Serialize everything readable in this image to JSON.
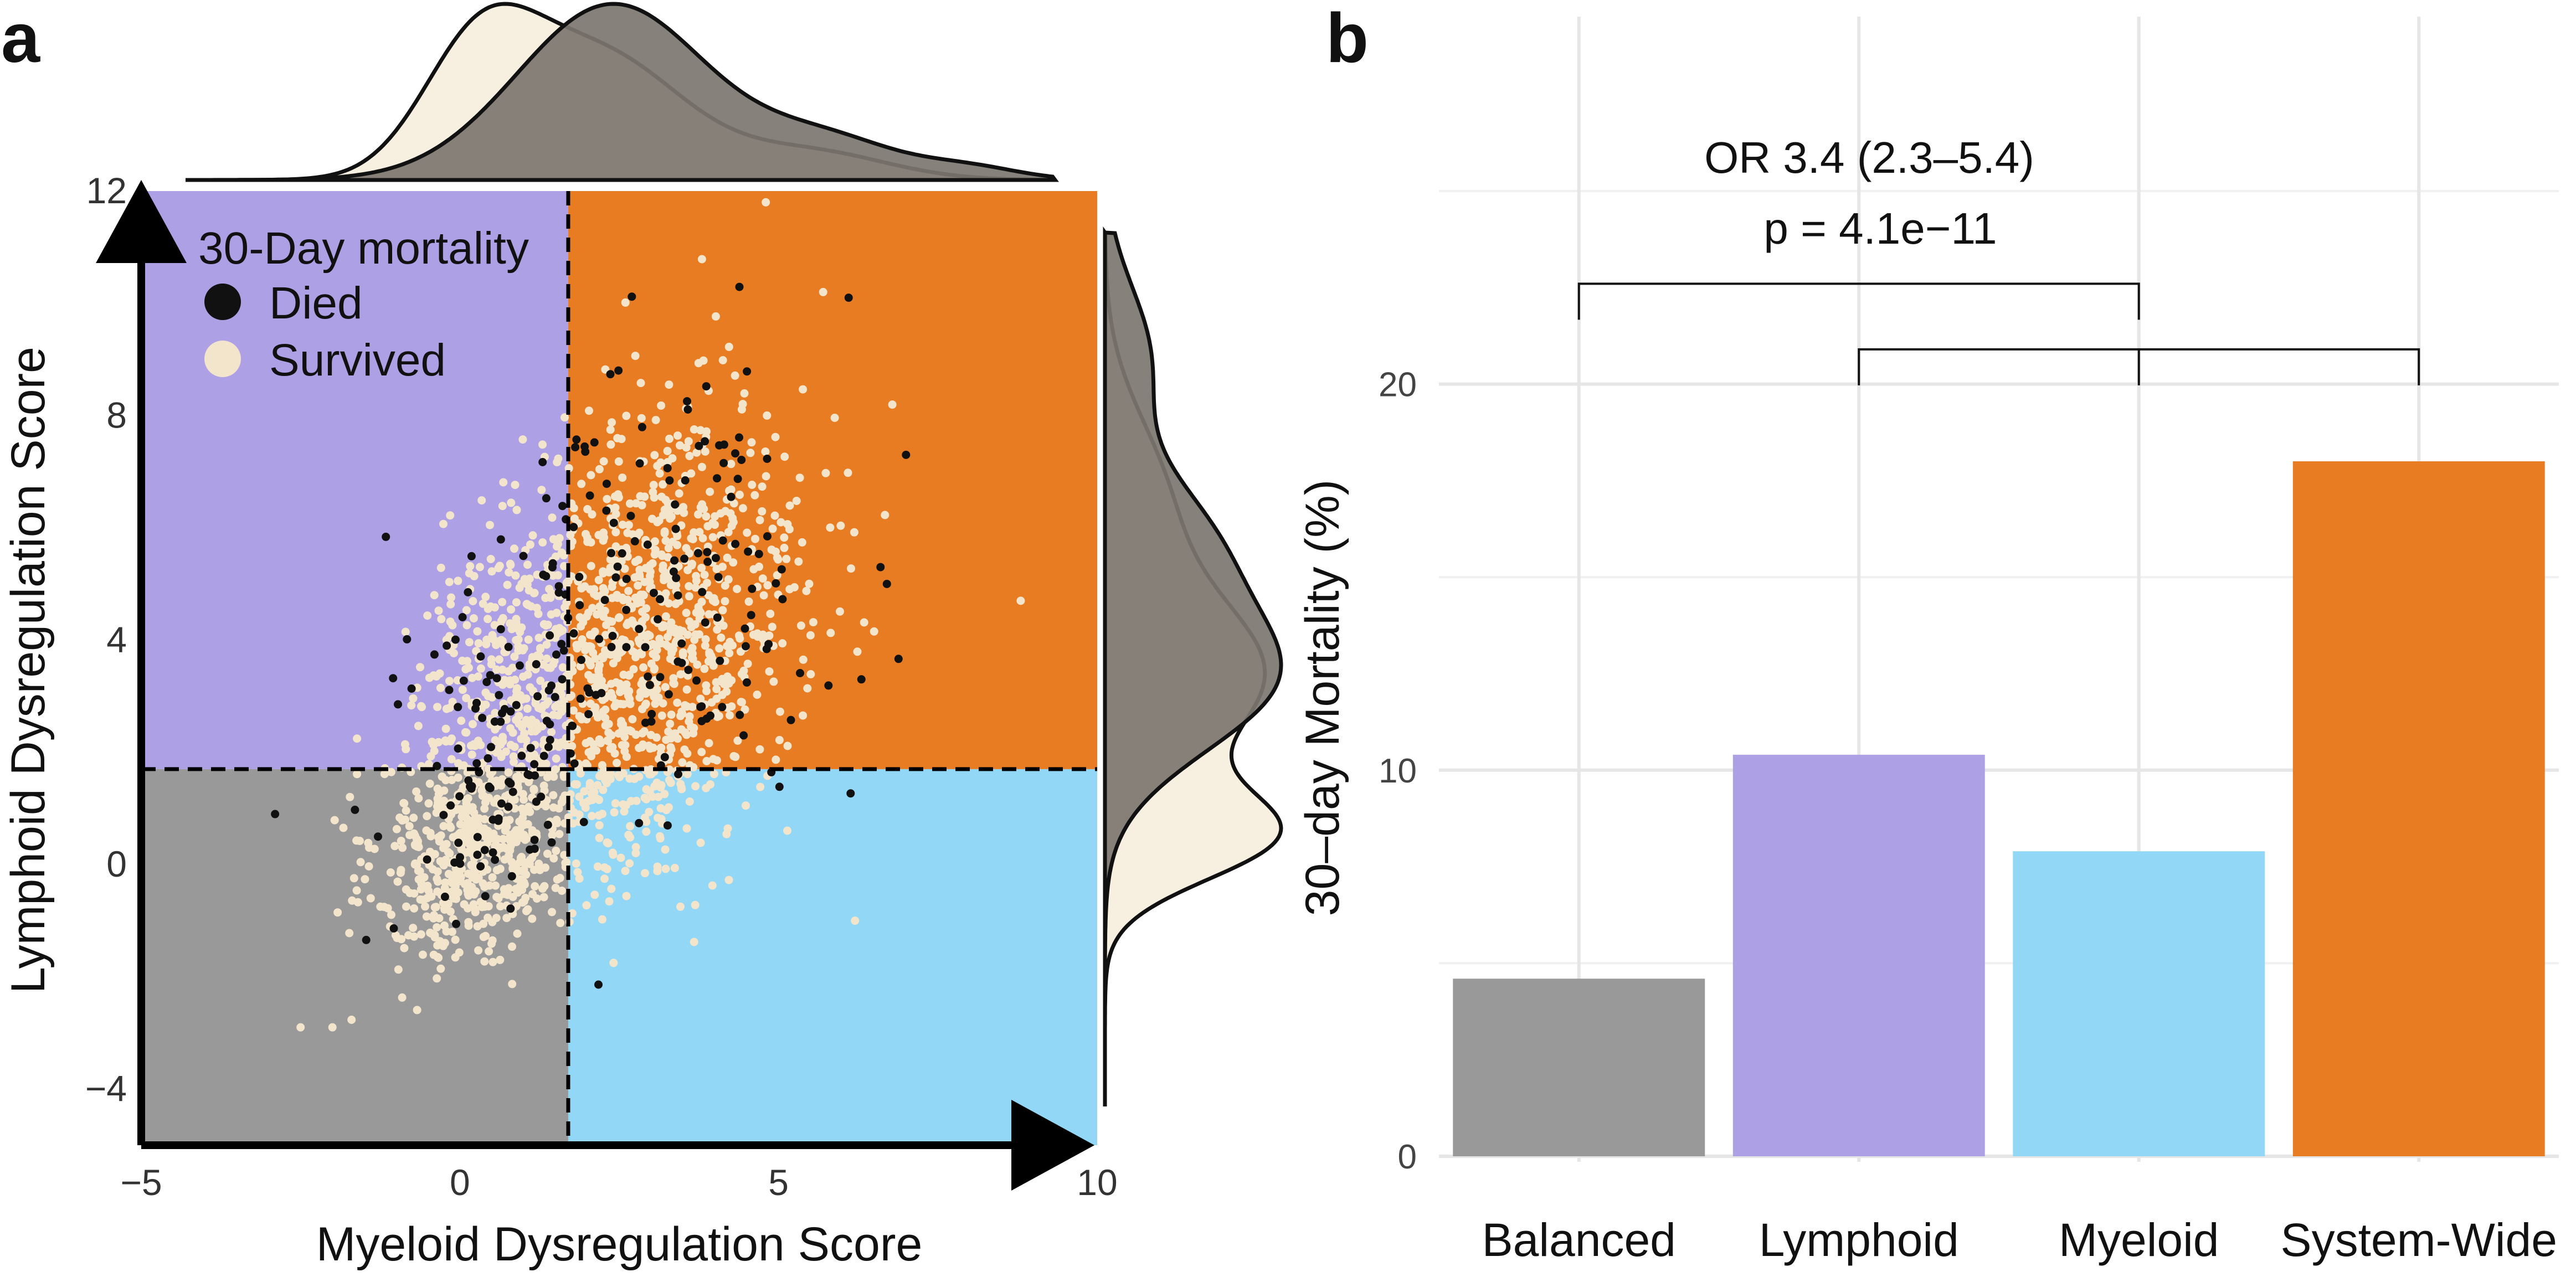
{
  "panels": {
    "a": "a",
    "b": "b"
  },
  "colors": {
    "balanced": "#999999",
    "lymphoid": "#AEA0E5",
    "myeloid": "#93D7F6",
    "system_wide": "#E87C22",
    "died": "#111111",
    "survived": "#F3E5CC",
    "density_died": "#7C7670",
    "density_survived": "#F7EFE0"
  },
  "chart_data": [
    {
      "type": "scatter",
      "title": "",
      "xlabel": "Myeloid Dysregulation Score",
      "ylabel": "Lymphoid Dysregulation Score",
      "xlim": [
        -5,
        10
      ],
      "ylim": [
        -5,
        12
      ],
      "xticks": [
        -5,
        0,
        5,
        10
      ],
      "yticks": [
        -4,
        0,
        4,
        8,
        12
      ],
      "x_threshold": 1.7,
      "y_threshold": 1.7,
      "quadrants": [
        {
          "name": "Lymphoid",
          "x": [
            -5,
            1.7
          ],
          "y": [
            1.7,
            12
          ],
          "color": "#AEA0E5"
        },
        {
          "name": "System-Wide",
          "x": [
            1.7,
            10
          ],
          "y": [
            1.7,
            12
          ],
          "color": "#E87C22"
        },
        {
          "name": "Balanced",
          "x": [
            -5,
            1.7
          ],
          "y": [
            -5,
            1.7
          ],
          "color": "#999999"
        },
        {
          "name": "Myeloid",
          "x": [
            1.7,
            10
          ],
          "y": [
            -5,
            1.7
          ],
          "color": "#93D7F6"
        }
      ],
      "legend": {
        "title": "30-Day mortality",
        "entries": [
          {
            "label": "Died",
            "color": "#111111"
          },
          {
            "label": "Survived",
            "color": "#F3E5CC"
          }
        ],
        "placement": "top-left"
      },
      "survived_clusters": [
        {
          "cx": 0.2,
          "cy": 0.3,
          "sx": 0.75,
          "sy": 1.0,
          "n": 520
        },
        {
          "cx": 1.0,
          "cy": 3.2,
          "sx": 0.9,
          "sy": 1.4,
          "n": 420
        },
        {
          "cx": 3.0,
          "cy": 4.2,
          "sx": 1.2,
          "sy": 1.9,
          "n": 900
        },
        {
          "cx": 2.4,
          "cy": 0.9,
          "sx": 1.0,
          "sy": 0.9,
          "n": 120
        }
      ],
      "died_clusters": [
        {
          "cx": 2.9,
          "cy": 4.6,
          "sx": 1.5,
          "sy": 2.0,
          "n": 150
        },
        {
          "cx": 0.8,
          "cy": 2.8,
          "sx": 0.9,
          "sy": 1.6,
          "n": 70
        },
        {
          "cx": 0.3,
          "cy": 0.3,
          "sx": 0.7,
          "sy": 0.8,
          "n": 30
        }
      ],
      "outliers": [
        {
          "x": -2.9,
          "y": 0.9,
          "group": "Died"
        },
        {
          "x": -2.5,
          "y": -2.9,
          "group": "Survived"
        },
        {
          "x": -2.0,
          "y": -2.9,
          "group": "Survived"
        },
        {
          "x": 8.8,
          "y": 4.7,
          "group": "Survived"
        },
        {
          "x": 6.2,
          "y": -1.0,
          "group": "Survived"
        },
        {
          "x": 6.1,
          "y": 10.1,
          "group": "Died"
        },
        {
          "x": 5.7,
          "y": 10.2,
          "group": "Survived"
        },
        {
          "x": 7.0,
          "y": 7.3,
          "group": "Died"
        },
        {
          "x": 6.6,
          "y": 5.3,
          "group": "Died"
        },
        {
          "x": 6.7,
          "y": 5.0,
          "group": "Died"
        },
        {
          "x": 6.3,
          "y": 3.3,
          "group": "Died"
        },
        {
          "x": 4.8,
          "y": 11.8,
          "group": "Survived"
        }
      ],
      "marginal_x": {
        "died": [
          {
            "x": 2.4,
            "sd": 1.5,
            "w": 0.75
          },
          {
            "x": 5.8,
            "sd": 1.1,
            "w": 0.16
          },
          {
            "x": 8.0,
            "sd": 0.8,
            "w": 0.05
          }
        ],
        "survived": [
          {
            "x": 0.3,
            "sd": 0.9,
            "w": 0.45
          },
          {
            "x": 2.2,
            "sd": 1.3,
            "w": 0.45
          },
          {
            "x": 5.5,
            "sd": 1.2,
            "w": 0.1
          }
        ]
      },
      "marginal_y": {
        "died": [
          {
            "y": 3.3,
            "sd": 1.3,
            "w": 0.55
          },
          {
            "y": 5.8,
            "sd": 1.2,
            "w": 0.3
          },
          {
            "y": 9.0,
            "sd": 1.3,
            "w": 0.15
          }
        ],
        "survived": [
          {
            "y": 0.5,
            "sd": 0.8,
            "w": 0.42
          },
          {
            "y": 3.3,
            "sd": 1.4,
            "w": 0.42
          },
          {
            "y": 6.5,
            "sd": 1.5,
            "w": 0.16
          }
        ]
      }
    },
    {
      "type": "bar",
      "title": "",
      "xlabel": "",
      "ylabel": "30–day Mortality (%)",
      "categories": [
        "Balanced",
        "Lymphoid",
        "Myeloid",
        "System-Wide"
      ],
      "values": [
        4.6,
        10.4,
        7.9,
        18.0
      ],
      "colors": [
        "#999999",
        "#AEA0E5",
        "#93D7F6",
        "#E87C22"
      ],
      "ylim": [
        0,
        25
      ],
      "yticks": [
        0,
        10,
        20
      ],
      "grid": true,
      "annotations": [
        {
          "text": "OR 3.4 (2.3–5.4)"
        },
        {
          "text": "p = 4.1e−11"
        }
      ],
      "brackets": [
        {
          "from": "Balanced",
          "to": "Myeloid",
          "level": 22.6
        },
        {
          "from": "Lymphoid",
          "to": "System-Wide",
          "level": 20.9
        }
      ]
    }
  ]
}
